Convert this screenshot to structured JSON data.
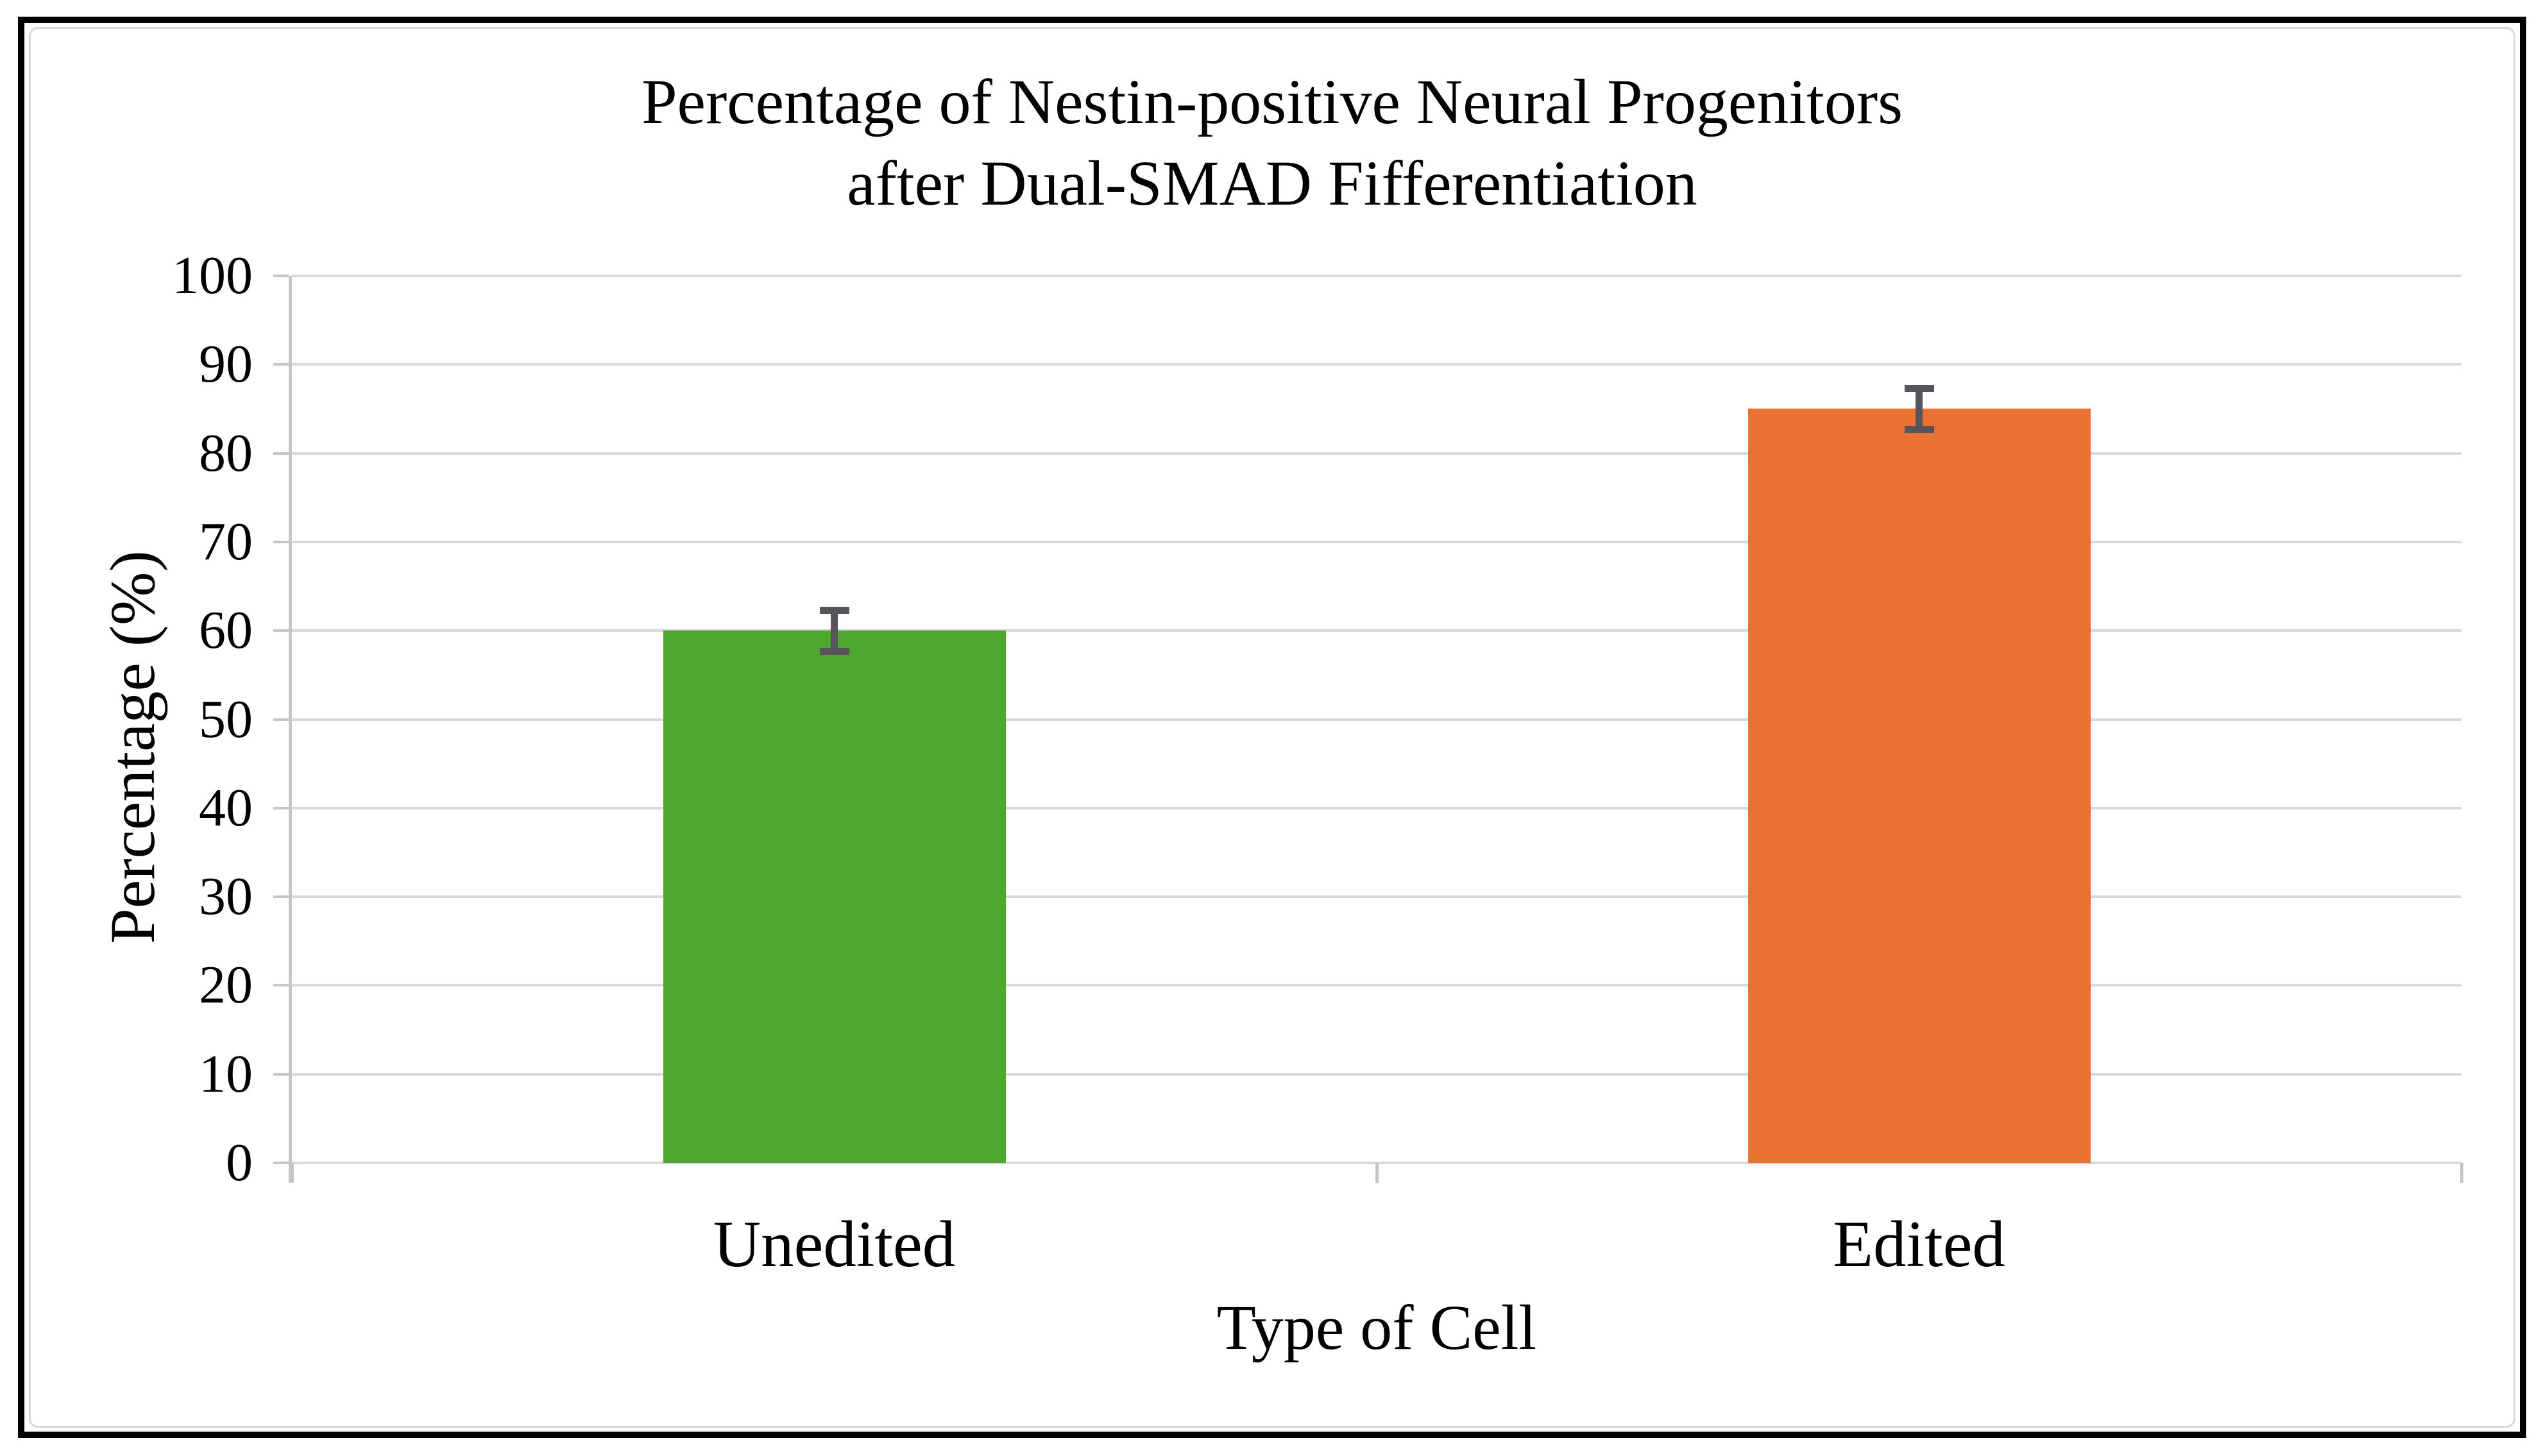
{
  "chart_data": {
    "type": "bar",
    "title": "Percentage of Nestin-positive Neural Progenitors after Dual-SMAD Fifferentiation",
    "title_lines": [
      "Percentage of Nestin-positive Neural Progenitors",
      "after Dual-SMAD Fifferentiation"
    ],
    "xlabel": "Type of Cell",
    "ylabel": "Percentage (%)",
    "categories": [
      "Unedited",
      "Edited"
    ],
    "values": [
      60,
      85
    ],
    "errors": [
      2,
      2
    ],
    "ylim": [
      0,
      100
    ],
    "yticks": [
      0,
      10,
      20,
      30,
      40,
      50,
      60,
      70,
      80,
      90,
      100
    ],
    "grid": "horizontal-only",
    "legend": "none",
    "colors": {
      "bar_unedited": "#4EA72E",
      "bar_edited": "#E97132",
      "error_bar": "#57545C",
      "gridline": "#D9D9D9",
      "axis_line": "#C6C6C6",
      "text": "#000000",
      "outer_frame": "#000000",
      "inner_border": "#D9D9D9",
      "background": "#FFFFFF"
    }
  }
}
